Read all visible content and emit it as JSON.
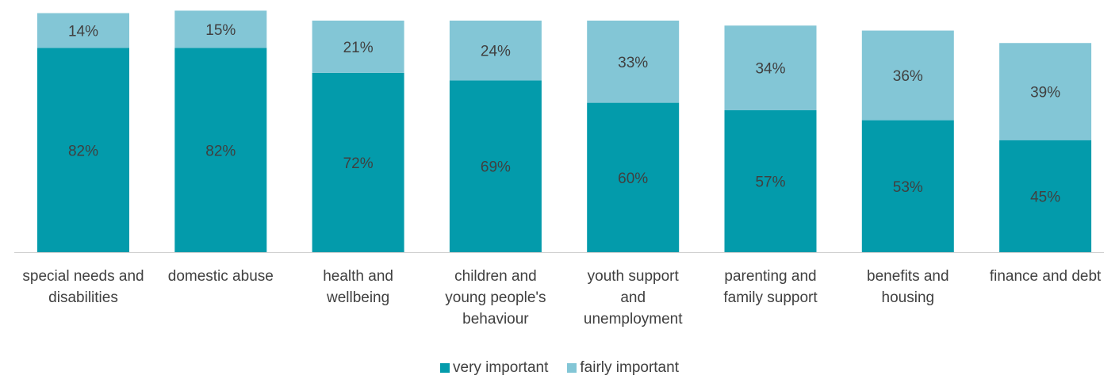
{
  "chart_data": {
    "type": "bar",
    "stacked": true,
    "categories": [
      [
        "special needs and",
        "disabilities"
      ],
      [
        "domestic abuse"
      ],
      [
        "health and",
        "wellbeing"
      ],
      [
        "children and",
        "young people's",
        "behaviour"
      ],
      [
        "youth support",
        "and",
        "unemployment"
      ],
      [
        "parenting and",
        "family support"
      ],
      [
        "benefits and",
        "housing"
      ],
      [
        "finance and debt"
      ]
    ],
    "series": [
      {
        "name": "very important",
        "color": "#039BAB",
        "values": [
          82,
          82,
          72,
          69,
          60,
          57,
          53,
          45
        ],
        "labels": [
          "82%",
          "82%",
          "72%",
          "69%",
          "60%",
          "57%",
          "53%",
          "45%"
        ]
      },
      {
        "name": "fairly important",
        "color": "#83C6D6",
        "values": [
          14,
          15,
          21,
          24,
          33,
          34,
          36,
          39
        ],
        "labels": [
          "14%",
          "15%",
          "21%",
          "24%",
          "33%",
          "34%",
          "36%",
          "39%"
        ]
      }
    ],
    "ylim": [
      0,
      100
    ],
    "grid": false,
    "legend_position": "bottom"
  }
}
